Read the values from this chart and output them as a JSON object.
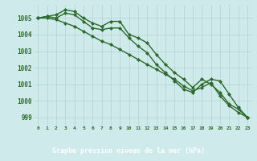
{
  "title": "Graphe pression niveau de la mer (hPa)",
  "x": [
    0,
    1,
    2,
    3,
    4,
    5,
    6,
    7,
    8,
    9,
    10,
    11,
    12,
    13,
    14,
    15,
    16,
    17,
    18,
    19,
    20,
    21,
    22,
    23
  ],
  "line1": [
    1005.0,
    1005.1,
    1005.2,
    1005.5,
    1005.4,
    1005.0,
    1004.7,
    1004.5,
    1004.8,
    1004.8,
    1004.0,
    1003.8,
    1003.5,
    1002.8,
    1002.2,
    1001.7,
    1001.3,
    1000.8,
    1001.3,
    1001.0,
    1000.5,
    999.8,
    999.5,
    999.0
  ],
  "line2": [
    1005.0,
    1005.1,
    1005.0,
    1005.3,
    1005.2,
    1004.8,
    1004.4,
    1004.3,
    1004.4,
    1004.4,
    1003.8,
    1003.3,
    1002.9,
    1002.2,
    1001.7,
    1001.2,
    1000.7,
    1000.5,
    1001.0,
    1001.3,
    1001.2,
    1000.4,
    999.6,
    999.0
  ],
  "line3": [
    1005.0,
    1005.0,
    1004.9,
    1004.7,
    1004.5,
    1004.2,
    1003.9,
    1003.6,
    1003.4,
    1003.1,
    1002.8,
    1002.5,
    1002.2,
    1001.9,
    1001.6,
    1001.3,
    1000.9,
    1000.6,
    1000.8,
    1001.1,
    1000.3,
    999.7,
    999.3,
    999.0
  ],
  "line_color": "#2d6a2d",
  "bg_color": "#ceeaea",
  "grid_color": "#b0d4cc",
  "title_bg": "#2d6a2d",
  "title_color": "#ffffff",
  "ylim": [
    998.5,
    1005.8
  ],
  "yticks": [
    999,
    1000,
    1001,
    1002,
    1003,
    1004,
    1005
  ],
  "marker": "D",
  "markersize": 2.0,
  "linewidth": 1.0
}
